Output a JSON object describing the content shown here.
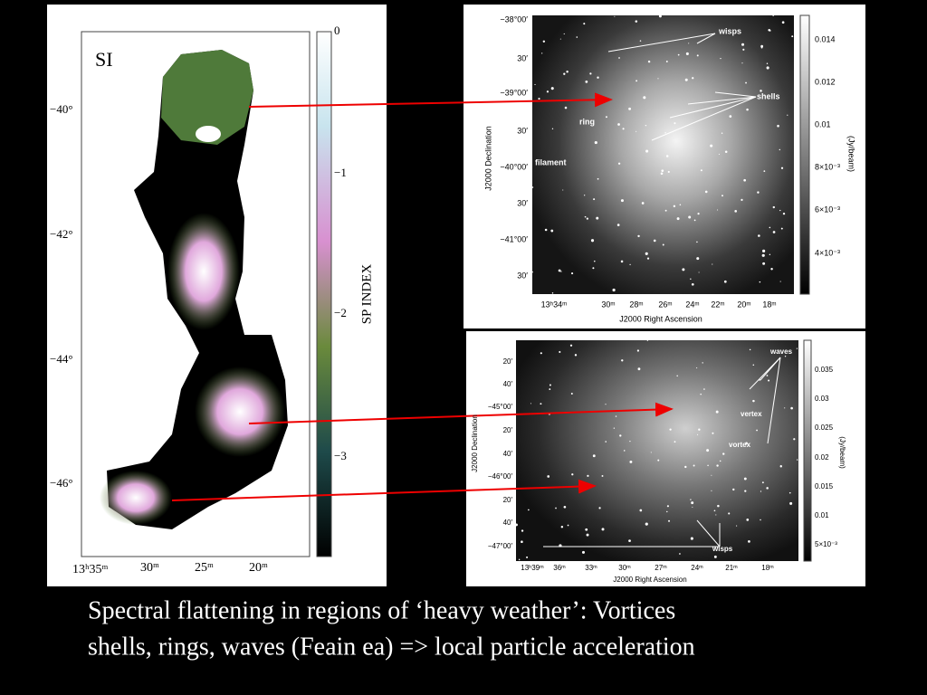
{
  "left_panel": {
    "label": "SI",
    "y_ticks": [
      "−40°",
      "−42°",
      "−44°",
      "−46°"
    ],
    "x_ticks": [
      "13ʰ35ᵐ",
      "30ᵐ",
      "25ᵐ",
      "20ᵐ"
    ],
    "colorbar_ticks": [
      "0",
      "−1",
      "−2",
      "−3"
    ],
    "colorbar_title": "SP INDEX"
  },
  "top_right_panel": {
    "y_ticks": [
      "−38°00′",
      "30′",
      "−39°00′",
      "30′",
      "−40°00′",
      "30′",
      "−41°00′",
      "30′"
    ],
    "x_ticks": [
      "13ʰ34ᵐ",
      "30ᵐ",
      "28ᵐ",
      "26ᵐ",
      "24ᵐ",
      "22ᵐ",
      "20ᵐ",
      "18ᵐ"
    ],
    "y_title": "J2000 Declination",
    "x_title": "J2000 Right Ascension",
    "colorbar_ticks": [
      "0.014",
      "0.012",
      "0.01",
      "8×10⁻³",
      "6×10⁻³",
      "4×10⁻³"
    ],
    "colorbar_title": "(Jy/beam)",
    "annotations": [
      "wisps",
      "shells",
      "ring",
      "filament"
    ]
  },
  "bottom_right_panel": {
    "y_ticks": [
      "20′",
      "40′",
      "−45°00′",
      "20′",
      "40′",
      "−46°00′",
      "20′",
      "40′",
      "−47°00′"
    ],
    "x_ticks": [
      "13ʰ39ᵐ",
      "36ᵐ",
      "33ᵐ",
      "30ᵐ",
      "27ᵐ",
      "24ᵐ",
      "21ᵐ",
      "18ᵐ"
    ],
    "y_title": "J2000 Declination",
    "x_title": "J2000 Right Ascension",
    "colorbar_ticks": [
      "0.035",
      "0.03",
      "0.025",
      "0.02",
      "0.015",
      "0.01",
      "5×10⁻³"
    ],
    "colorbar_title": "(Jy/beam)",
    "annotations": [
      "waves",
      "vertex",
      "vortex",
      "wisps"
    ]
  },
  "caption": [
    "Spectral flattening in regions of ‘heavy weather’: Vortices",
    "shells, rings, waves (Feain ea) => local particle acceleration"
  ]
}
